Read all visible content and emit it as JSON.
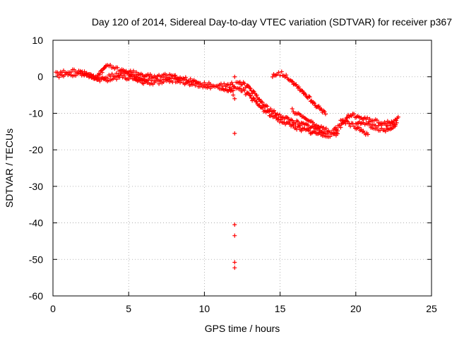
{
  "chart_data": {
    "type": "scatter",
    "title": "Day 120 of 2014, Sidereal Day-to-day VTEC variation (SDTVAR) for receiver p367",
    "xlabel": "GPS time / hours",
    "ylabel": "SDTVAR / TECUs",
    "xlim": [
      0,
      25
    ],
    "ylim": [
      -60,
      10
    ],
    "xticks": [
      0,
      5,
      10,
      15,
      20,
      25
    ],
    "yticks": [
      10,
      0,
      -10,
      -20,
      -30,
      -40,
      -50,
      -60
    ],
    "grid": true,
    "marker": "+",
    "color": "#ff0000",
    "series": [
      {
        "name": "track-1",
        "points": [
          [
            0.2,
            0.8
          ],
          [
            0.6,
            1.1
          ],
          [
            1.0,
            1.3
          ],
          [
            1.4,
            1.5
          ],
          [
            1.8,
            1.7
          ],
          [
            2.0,
            1.2
          ],
          [
            2.3,
            0.6
          ],
          [
            2.6,
            0.0
          ],
          [
            2.9,
            -0.4
          ],
          [
            3.2,
            -0.3
          ],
          [
            3.5,
            0.0
          ],
          [
            3.9,
            0.3
          ],
          [
            4.3,
            0.5
          ],
          [
            4.7,
            0.9
          ],
          [
            5.0,
            0.7
          ],
          [
            5.3,
            0.2
          ],
          [
            5.6,
            -0.3
          ],
          [
            5.9,
            -0.7
          ],
          [
            6.2,
            -1.0
          ],
          [
            6.6,
            -0.8
          ],
          [
            7.0,
            -0.6
          ],
          [
            7.4,
            -0.4
          ],
          [
            7.8,
            -0.3
          ],
          [
            8.2,
            -0.4
          ],
          [
            8.6,
            -0.5
          ],
          [
            9.0,
            -1.0
          ],
          [
            9.4,
            -1.4
          ],
          [
            9.8,
            -1.8
          ],
          [
            10.2,
            -2.0
          ],
          [
            10.6,
            -2.1
          ],
          [
            11.0,
            -2.0
          ],
          [
            11.4,
            -2.3
          ],
          [
            11.8,
            -2.7
          ],
          [
            12.0,
            -2.9
          ]
        ]
      },
      {
        "name": "track-2",
        "points": [
          [
            0.3,
            0.0
          ],
          [
            0.7,
            0.3
          ],
          [
            1.1,
            0.6
          ],
          [
            1.5,
            0.8
          ],
          [
            1.9,
            0.6
          ],
          [
            2.3,
            0.1
          ],
          [
            2.7,
            -0.6
          ],
          [
            3.1,
            -1.0
          ],
          [
            3.5,
            -0.8
          ],
          [
            3.9,
            -0.5
          ],
          [
            4.3,
            -0.2
          ],
          [
            4.7,
            0.0
          ],
          [
            5.1,
            -0.4
          ],
          [
            5.5,
            -0.9
          ],
          [
            5.9,
            -1.4
          ],
          [
            6.3,
            -1.8
          ],
          [
            6.7,
            -1.6
          ],
          [
            7.1,
            -1.4
          ],
          [
            7.5,
            -1.2
          ],
          [
            7.9,
            -1.0
          ],
          [
            8.3,
            -1.2
          ],
          [
            8.7,
            -1.5
          ],
          [
            9.1,
            -1.9
          ],
          [
            9.5,
            -2.2
          ],
          [
            9.9,
            -2.5
          ],
          [
            10.3,
            -2.7
          ],
          [
            10.7,
            -2.8
          ],
          [
            11.1,
            -2.9
          ],
          [
            11.5,
            -3.3
          ],
          [
            11.9,
            -3.8
          ]
        ]
      },
      {
        "name": "track-3",
        "points": [
          [
            2.9,
            0.0
          ],
          [
            3.1,
            0.8
          ],
          [
            3.3,
            1.8
          ],
          [
            3.5,
            3.0
          ],
          [
            5.6,
            0.8
          ],
          [
            5.9,
            0.2
          ],
          [
            6.2,
            0.8
          ],
          [
            6.5,
            0.4
          ],
          [
            7.2,
            0.4
          ],
          [
            7.6,
            0.1
          ],
          [
            8.0,
            0.3
          ],
          [
            8.4,
            -0.2
          ]
        ]
      },
      {
        "name": "track-4",
        "points": [
          [
            12.2,
            -1.2
          ],
          [
            12.5,
            -1.8
          ],
          [
            12.8,
            -2.6
          ],
          [
            13.1,
            -3.8
          ],
          [
            13.4,
            -5.2
          ],
          [
            13.7,
            -6.6
          ],
          [
            14.0,
            -8.0
          ],
          [
            14.3,
            -9.0
          ],
          [
            14.6,
            -9.8
          ],
          [
            14.9,
            -10.5
          ],
          [
            15.2,
            -11.0
          ],
          [
            15.5,
            -11.6
          ],
          [
            15.8,
            -12.1
          ],
          [
            16.1,
            -12.5
          ],
          [
            16.4,
            -12.9
          ],
          [
            16.7,
            -13.3
          ],
          [
            17.0,
            -13.7
          ],
          [
            17.3,
            -14.1
          ],
          [
            17.6,
            -14.6
          ],
          [
            17.9,
            -15.0
          ],
          [
            18.2,
            -15.2
          ],
          [
            18.5,
            -15.3
          ],
          [
            18.8,
            -14.8
          ]
        ]
      },
      {
        "name": "track-5",
        "points": [
          [
            12.2,
            -2.8
          ],
          [
            12.5,
            -3.6
          ],
          [
            12.8,
            -4.6
          ],
          [
            13.1,
            -5.8
          ],
          [
            13.4,
            -7.0
          ],
          [
            13.7,
            -8.2
          ],
          [
            14.0,
            -9.3
          ],
          [
            14.3,
            -10.2
          ],
          [
            14.6,
            -11.0
          ],
          [
            14.9,
            -11.7
          ],
          [
            15.2,
            -12.3
          ],
          [
            15.5,
            -12.9
          ],
          [
            15.8,
            -13.4
          ],
          [
            16.1,
            -13.9
          ],
          [
            16.4,
            -14.3
          ],
          [
            16.7,
            -14.7
          ],
          [
            17.0,
            -15.1
          ],
          [
            17.3,
            -15.4
          ],
          [
            17.6,
            -15.7
          ],
          [
            17.9,
            -15.9
          ],
          [
            18.2,
            -15.9
          ],
          [
            18.5,
            -15.7
          ],
          [
            18.8,
            -15.6
          ]
        ]
      },
      {
        "name": "track-6",
        "points": [
          [
            14.5,
            0.5
          ],
          [
            14.8,
            1.0
          ],
          [
            15.1,
            0.9
          ],
          [
            15.4,
            0.2
          ],
          [
            15.7,
            -0.8
          ],
          [
            16.0,
            -2.0
          ],
          [
            16.3,
            -3.2
          ],
          [
            16.6,
            -4.5
          ],
          [
            16.9,
            -5.7
          ],
          [
            17.2,
            -7.0
          ],
          [
            17.5,
            -8.3
          ],
          [
            17.8,
            -9.5
          ],
          [
            18.0,
            -10.2
          ]
        ]
      },
      {
        "name": "track-7",
        "points": [
          [
            15.8,
            -9.2
          ],
          [
            16.2,
            -10.3
          ],
          [
            16.6,
            -11.3
          ],
          [
            17.0,
            -12.3
          ],
          [
            17.4,
            -13.3
          ],
          [
            17.8,
            -14.2
          ],
          [
            18.2,
            -14.8
          ]
        ]
      },
      {
        "name": "track-8",
        "points": [
          [
            18.5,
            -14.6
          ],
          [
            19.0,
            -13.5
          ],
          [
            19.5,
            -11.0
          ],
          [
            19.8,
            -10.4
          ],
          [
            20.2,
            -11.0
          ],
          [
            20.6,
            -11.5
          ],
          [
            21.0,
            -12.0
          ],
          [
            21.4,
            -12.2
          ],
          [
            21.8,
            -12.4
          ],
          [
            22.2,
            -12.3
          ],
          [
            22.6,
            -11.8
          ],
          [
            22.8,
            -11.0
          ]
        ]
      },
      {
        "name": "track-9",
        "points": [
          [
            19.0,
            -11.8
          ],
          [
            19.4,
            -12.6
          ],
          [
            19.8,
            -13.3
          ],
          [
            20.2,
            -14.0
          ],
          [
            20.5,
            -14.8
          ],
          [
            20.8,
            -15.8
          ]
        ]
      },
      {
        "name": "track-10",
        "points": [
          [
            20.0,
            -12.6
          ],
          [
            20.4,
            -13.0
          ],
          [
            20.8,
            -13.2
          ],
          [
            21.2,
            -13.3
          ],
          [
            21.6,
            -13.4
          ],
          [
            22.0,
            -13.2
          ],
          [
            22.4,
            -12.9
          ],
          [
            22.7,
            -12.6
          ]
        ]
      },
      {
        "name": "track-11",
        "points": [
          [
            21.0,
            -14.2
          ],
          [
            21.4,
            -14.4
          ],
          [
            21.8,
            -14.6
          ],
          [
            22.2,
            -14.1
          ],
          [
            22.6,
            -13.5
          ]
        ]
      },
      {
        "name": "outliers",
        "points": [
          [
            11.7,
            -3.5
          ],
          [
            11.8,
            -1.6
          ],
          [
            11.9,
            -5.0
          ],
          [
            12.0,
            0.0
          ],
          [
            12.0,
            -6.0
          ],
          [
            12.1,
            -1.5
          ],
          [
            12.1,
            -3.2
          ],
          [
            12.0,
            -15.5
          ],
          [
            12.0,
            -40.5
          ],
          [
            12.0,
            -43.5
          ],
          [
            12.0,
            -50.8
          ],
          [
            12.0,
            -52.3
          ]
        ]
      }
    ]
  }
}
